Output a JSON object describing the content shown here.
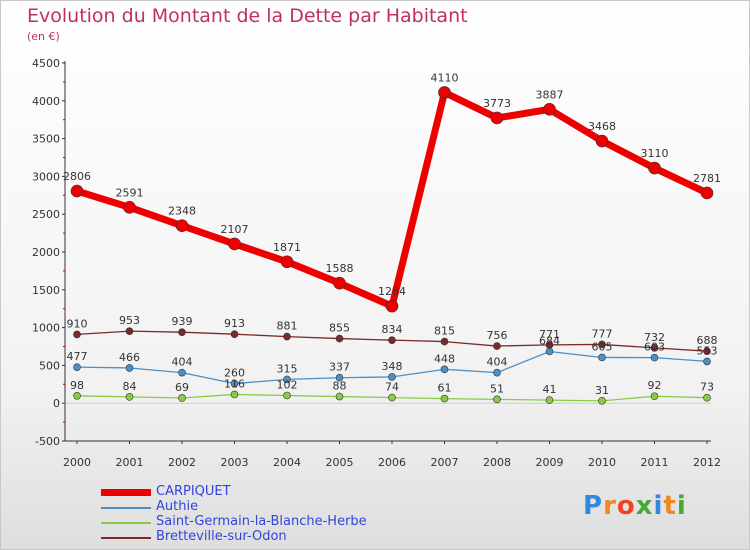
{
  "header": {
    "title": "Evolution du Montant de la Dette par Habitant",
    "subtitle": "(en €)"
  },
  "brand": {
    "logo_text": "Proxiti"
  },
  "chart_data": {
    "type": "line",
    "title": "Evolution du Montant de la Dette par Habitant",
    "subtitle": "(en €)",
    "x": [
      "2000",
      "2001",
      "2002",
      "2003",
      "2004",
      "2005",
      "2006",
      "2007",
      "2008",
      "2009",
      "2010",
      "2011",
      "2012"
    ],
    "ylim": [
      -500,
      4500
    ],
    "yticks": [
      -500,
      0,
      500,
      1000,
      1500,
      2000,
      2500,
      3000,
      3500,
      4000,
      4500
    ],
    "legend_position": "bottom-left",
    "grid": false,
    "series": [
      {
        "name": "CARPIQUET",
        "color": "#ee0000",
        "values": [
          2806,
          2591,
          2348,
          2107,
          1871,
          1588,
          1284,
          4110,
          3773,
          3887,
          3468,
          3110,
          2781
        ],
        "labels": [
          "2806",
          "2591",
          "2348",
          "2107",
          "1871",
          "1588",
          "1284",
          "4110",
          "3773",
          "3887",
          "3468",
          "3110",
          "2781"
        ]
      },
      {
        "name": "Authie",
        "color": "#4a90c8",
        "values": [
          477,
          466,
          404,
          260,
          315,
          337,
          348,
          448,
          404,
          684,
          605,
          603,
          553
        ],
        "labels": [
          "477",
          "466",
          "404",
          "260",
          "315",
          "337",
          "348",
          "448",
          "404",
          "684",
          "605",
          "603",
          "553"
        ]
      },
      {
        "name": "Saint-Germain-la-Blanche-Herbe",
        "color": "#88cc44",
        "values": [
          98,
          84,
          69,
          116,
          102,
          88,
          74,
          61,
          51,
          41,
          31,
          92,
          73
        ],
        "labels": [
          "98",
          "84",
          "69",
          "116",
          "102",
          "88",
          "74",
          "61",
          "51",
          "41",
          "31",
          "92",
          "73"
        ]
      },
      {
        "name": "Bretteville-sur-Odon",
        "color": "#7a2a2a",
        "values": [
          910,
          953,
          939,
          913,
          881,
          855,
          834,
          815,
          756,
          771,
          777,
          732,
          688
        ],
        "labels": [
          "910",
          "953",
          "939",
          "913",
          "881",
          "855",
          "834",
          "815",
          "756",
          "771",
          "777",
          "732",
          "688"
        ]
      }
    ]
  }
}
